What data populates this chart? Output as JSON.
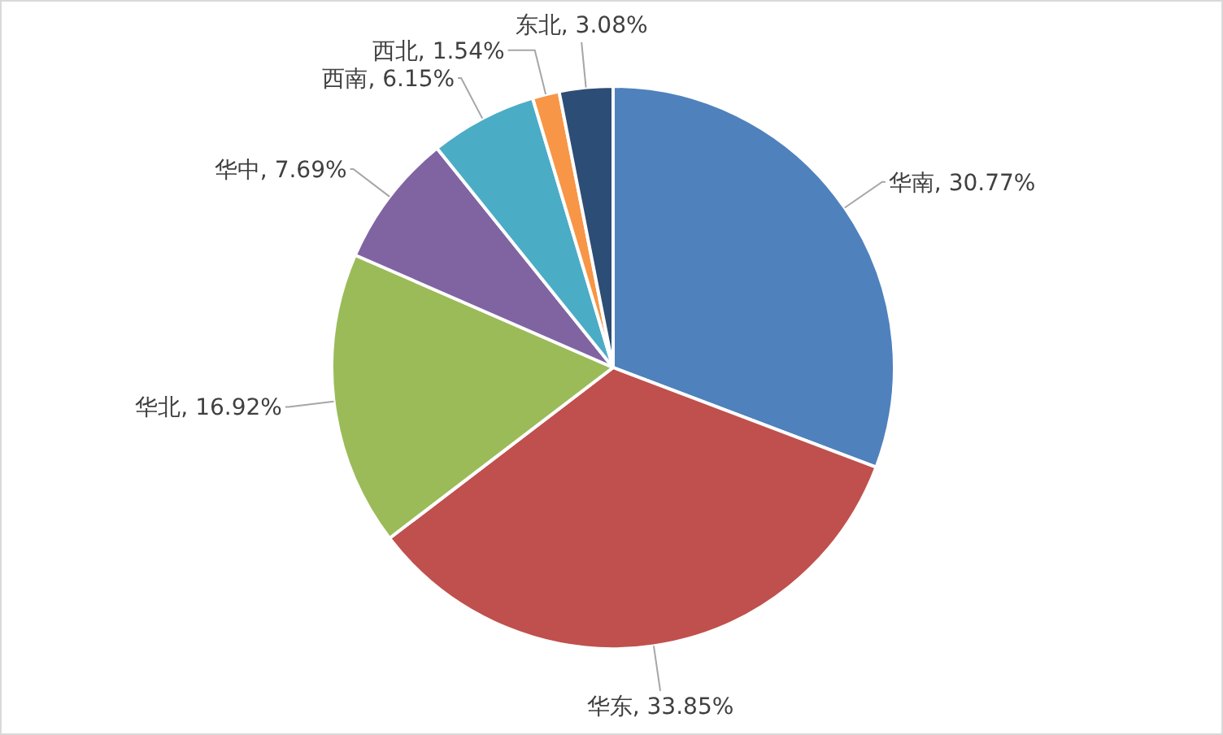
{
  "chart_data": {
    "type": "pie",
    "categories": [
      "华南",
      "华东",
      "华北",
      "华中",
      "西南",
      "西北",
      "东北"
    ],
    "values": [
      30.77,
      33.85,
      16.92,
      7.69,
      6.15,
      1.54,
      3.08
    ],
    "value_labels": [
      "30.77%",
      "33.85%",
      "16.92%",
      "7.69%",
      "6.15%",
      "1.54%",
      "3.08%"
    ],
    "colors": [
      "#4f81bd",
      "#c0504d",
      "#9bbb59",
      "#8064a2",
      "#4bacc6",
      "#f79646",
      "#2c4d75"
    ]
  }
}
